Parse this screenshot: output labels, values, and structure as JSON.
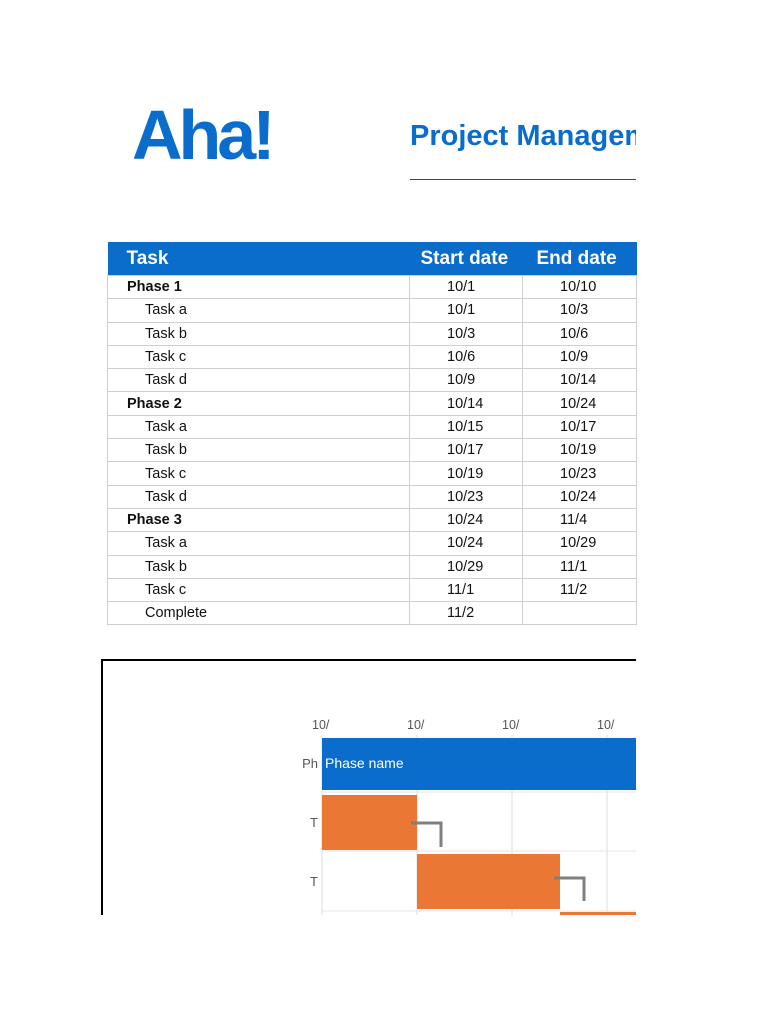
{
  "header": {
    "logo_text": "Aha!",
    "title": "Project Management Template",
    "accent_color": "#0a6ccb"
  },
  "table": {
    "columns": [
      "Task",
      "Start date",
      "End date"
    ],
    "rows": [
      {
        "task": "Phase 1",
        "start": "10/1",
        "end": "10/10",
        "kind": "phase"
      },
      {
        "task": "Task a",
        "start": "10/1",
        "end": "10/3",
        "kind": "task"
      },
      {
        "task": "Task b",
        "start": "10/3",
        "end": "10/6",
        "kind": "task"
      },
      {
        "task": "Task c",
        "start": "10/6",
        "end": "10/9",
        "kind": "task"
      },
      {
        "task": "Task d",
        "start": "10/9",
        "end": "10/14",
        "kind": "task"
      },
      {
        "task": "Phase 2",
        "start": "10/14",
        "end": "10/24",
        "kind": "phase"
      },
      {
        "task": "Task a",
        "start": "10/15",
        "end": "10/17",
        "kind": "task"
      },
      {
        "task": "Task b",
        "start": "10/17",
        "end": "10/19",
        "kind": "task"
      },
      {
        "task": "Task c",
        "start": "10/19",
        "end": "10/23",
        "kind": "task"
      },
      {
        "task": "Task d",
        "start": "10/23",
        "end": "10/24",
        "kind": "task"
      },
      {
        "task": "Phase 3",
        "start": "10/24",
        "end": "11/4",
        "kind": "phase"
      },
      {
        "task": "Task a",
        "start": "10/24",
        "end": "10/29",
        "kind": "task"
      },
      {
        "task": "Task b",
        "start": "10/29",
        "end": "11/1",
        "kind": "task"
      },
      {
        "task": "Task c",
        "start": "11/1",
        "end": "11/2",
        "kind": "task"
      },
      {
        "task": "Complete",
        "start": "11/2",
        "end": "",
        "kind": "task"
      }
    ]
  },
  "gantt": {
    "axis_tick_labels": [
      "10/",
      "10/",
      "10/",
      "10/"
    ],
    "row_labels": [
      "Ph",
      "T",
      "T"
    ],
    "phase_bar_label": "Phase name",
    "phase_color": "#0a6ccb",
    "task_color": "#ea7733",
    "connector_color": "#7f7f7f"
  }
}
